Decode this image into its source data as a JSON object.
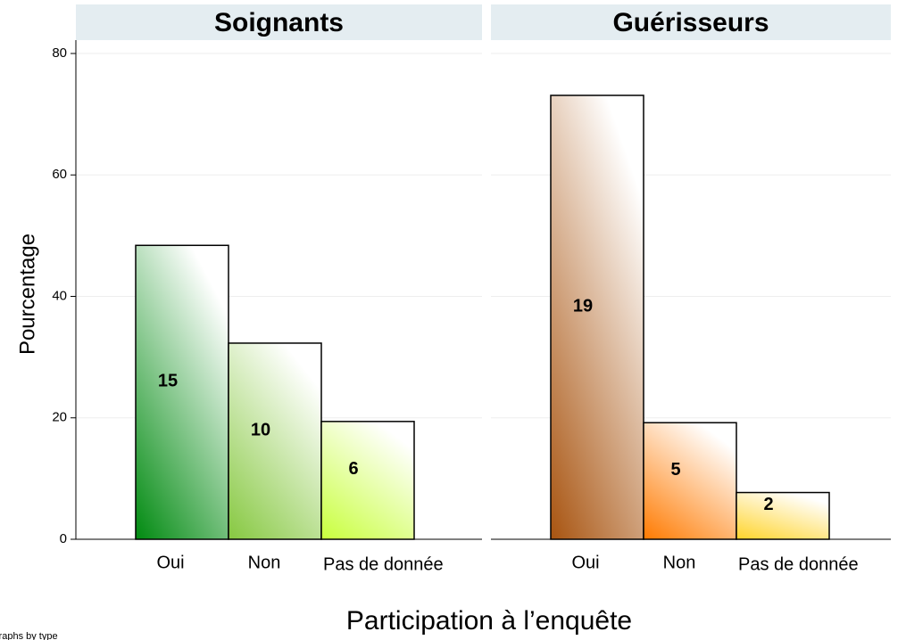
{
  "chart_data": {
    "type": "bar",
    "ylabel": "Pourcentage",
    "xlabel": "Participation à l’enquête",
    "note": "Graphs by type",
    "ylim": [
      0,
      80
    ],
    "yticks": [
      0,
      20,
      40,
      60,
      80
    ],
    "grid": true,
    "panels": [
      {
        "title": "Soignants",
        "categories": [
          "Oui",
          "Non",
          "Pas de donnée"
        ],
        "values": [
          48.4,
          32.3,
          19.4
        ],
        "counts": [
          15,
          10,
          6
        ],
        "colors": [
          "#008a10",
          "#86c840",
          "#c8ff3c"
        ]
      },
      {
        "title": "Guérisseurs",
        "categories": [
          "Oui",
          "Non",
          "Pas de donnée"
        ],
        "values": [
          73.1,
          19.2,
          7.7
        ],
        "counts": [
          19,
          5,
          2
        ],
        "colors": [
          "#a85410",
          "#ff7a00",
          "#ffd42a"
        ]
      }
    ]
  }
}
